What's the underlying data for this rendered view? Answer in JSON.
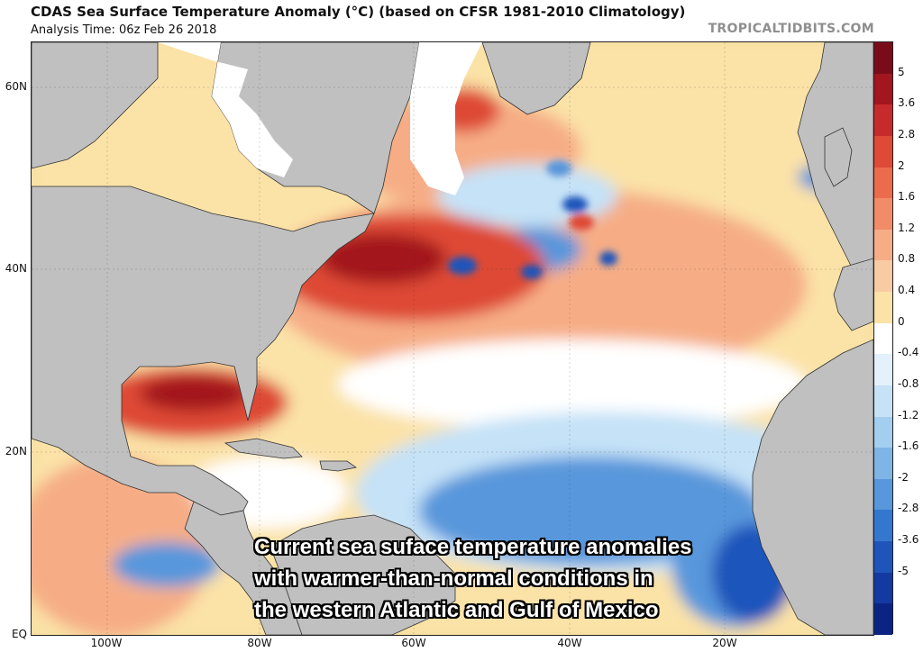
{
  "header": {
    "title": "CDAS Sea Surface Temperature Anomaly (°C) (based on CFSR 1981-2010 Climatology)",
    "analysis_time": "Analysis Time: 06z Feb 26 2018",
    "credit": "TROPICALTIDBITS.COM"
  },
  "axes": {
    "lat_labels": [
      "60N",
      "40N",
      "20N",
      "EQ"
    ],
    "lon_labels": [
      "100W",
      "80W",
      "60W",
      "40W",
      "20W"
    ]
  },
  "colorbar": {
    "labels": [
      "5",
      "3.6",
      "2.8",
      "2",
      "1.6",
      "1.2",
      "0.8",
      "0.4",
      "0",
      "-0.4",
      "-0.8",
      "-1.2",
      "-1.6",
      "-2",
      "-2.8",
      "-3.6",
      "-5"
    ],
    "colors": [
      "#7a0c1a",
      "#a3151f",
      "#c72a2a",
      "#de4a35",
      "#ec6b4d",
      "#f28c68",
      "#f6ad86",
      "#f9cba3",
      "#fbe2a7",
      "#ffffff",
      "#e2f1fb",
      "#c5e2f7",
      "#a3cef0",
      "#7fb4e6",
      "#5897db",
      "#3477cf",
      "#1f55bb",
      "#1339a2",
      "#0b2483"
    ]
  },
  "annotation": {
    "lines": [
      "Current sea suface temperature anomalies",
      "with warmer-than-normal conditions in",
      "the western Atlantic and Gulf of Mexico"
    ]
  },
  "map_colors": {
    "land": "#c0c0c0",
    "ice": "#ffffff",
    "very_warm": "#a3151f",
    "warm": "#de4a35",
    "mild_warm": "#f6ad86",
    "slight_warm": "#fbe2a7",
    "neutral": "#ffffff",
    "slight_cool": "#c5e2f7",
    "cool": "#5897db",
    "very_cool": "#1f55bb"
  }
}
